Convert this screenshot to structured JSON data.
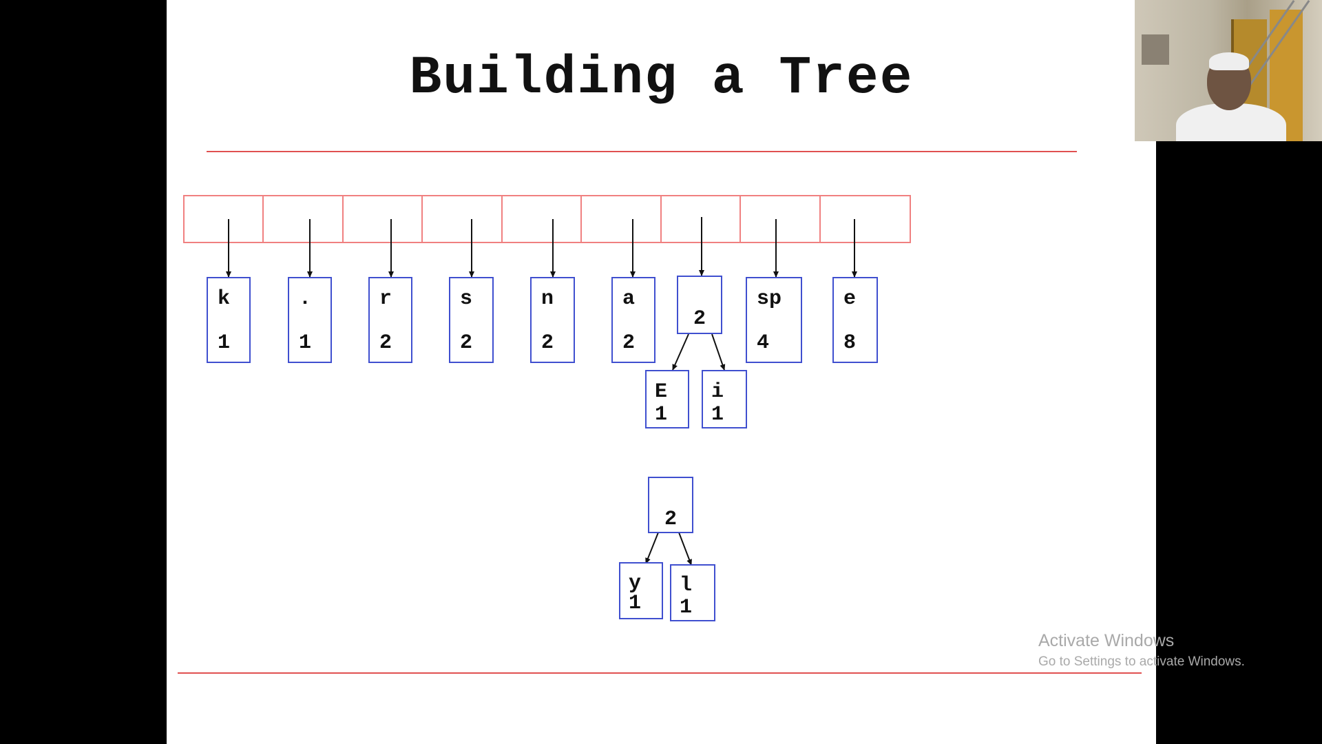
{
  "slide": {
    "title": "Building a Tree",
    "leaves": [
      {
        "symbol": "k",
        "count": "1"
      },
      {
        "symbol": ".",
        "count": "1"
      },
      {
        "symbol": "r",
        "count": "2"
      },
      {
        "symbol": "s",
        "count": "2"
      },
      {
        "symbol": "n",
        "count": "2"
      },
      {
        "symbol": "a",
        "count": "2"
      },
      {
        "symbol": "sp",
        "count": "4"
      },
      {
        "symbol": "e",
        "count": "8"
      }
    ],
    "subtree_one": {
      "weight": "2",
      "left": {
        "symbol": "E",
        "count": "1"
      },
      "right": {
        "symbol": "i",
        "count": "1"
      }
    },
    "subtree_two": {
      "weight": "2",
      "left": {
        "symbol": "y",
        "count": "1"
      },
      "right": {
        "symbol": "l",
        "count": "1"
      }
    }
  },
  "watermark": {
    "line1": "Activate Windows",
    "line2": "Go to Settings to activate Windows."
  },
  "colors": {
    "rule": "#e05050",
    "slot_border": "#f08080",
    "node_border": "#3f4fcf",
    "background": "#000000",
    "slide": "#ffffff"
  }
}
